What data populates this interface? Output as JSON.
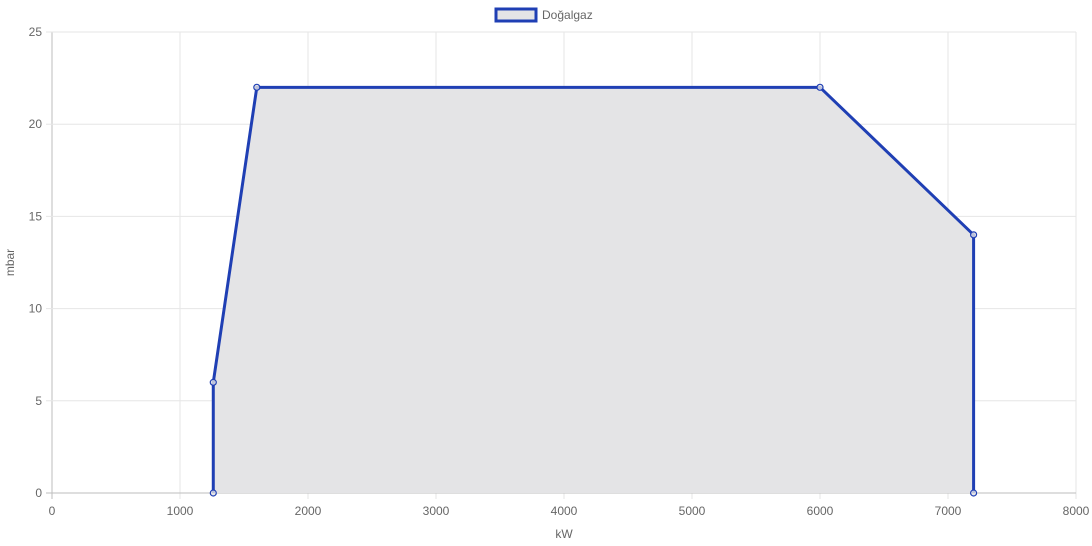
{
  "chart_data": {
    "type": "area",
    "xlabel": "kW",
    "ylabel": "mbar",
    "xlim": [
      0,
      8000
    ],
    "ylim": [
      0,
      25
    ],
    "x_ticks": [
      0,
      1000,
      2000,
      3000,
      4000,
      5000,
      6000,
      7000,
      8000
    ],
    "y_ticks": [
      0,
      5,
      10,
      15,
      20,
      25
    ],
    "grid": true,
    "legend_position": "top-center",
    "series": [
      {
        "name": "Doğalgaz",
        "color": "#1f3fb4",
        "fill": "#e4e4e6",
        "points": [
          {
            "x": 1260,
            "y": 0
          },
          {
            "x": 1260,
            "y": 6
          },
          {
            "x": 1600,
            "y": 22
          },
          {
            "x": 6000,
            "y": 22
          },
          {
            "x": 7200,
            "y": 14
          },
          {
            "x": 7200,
            "y": 0
          }
        ]
      }
    ]
  }
}
